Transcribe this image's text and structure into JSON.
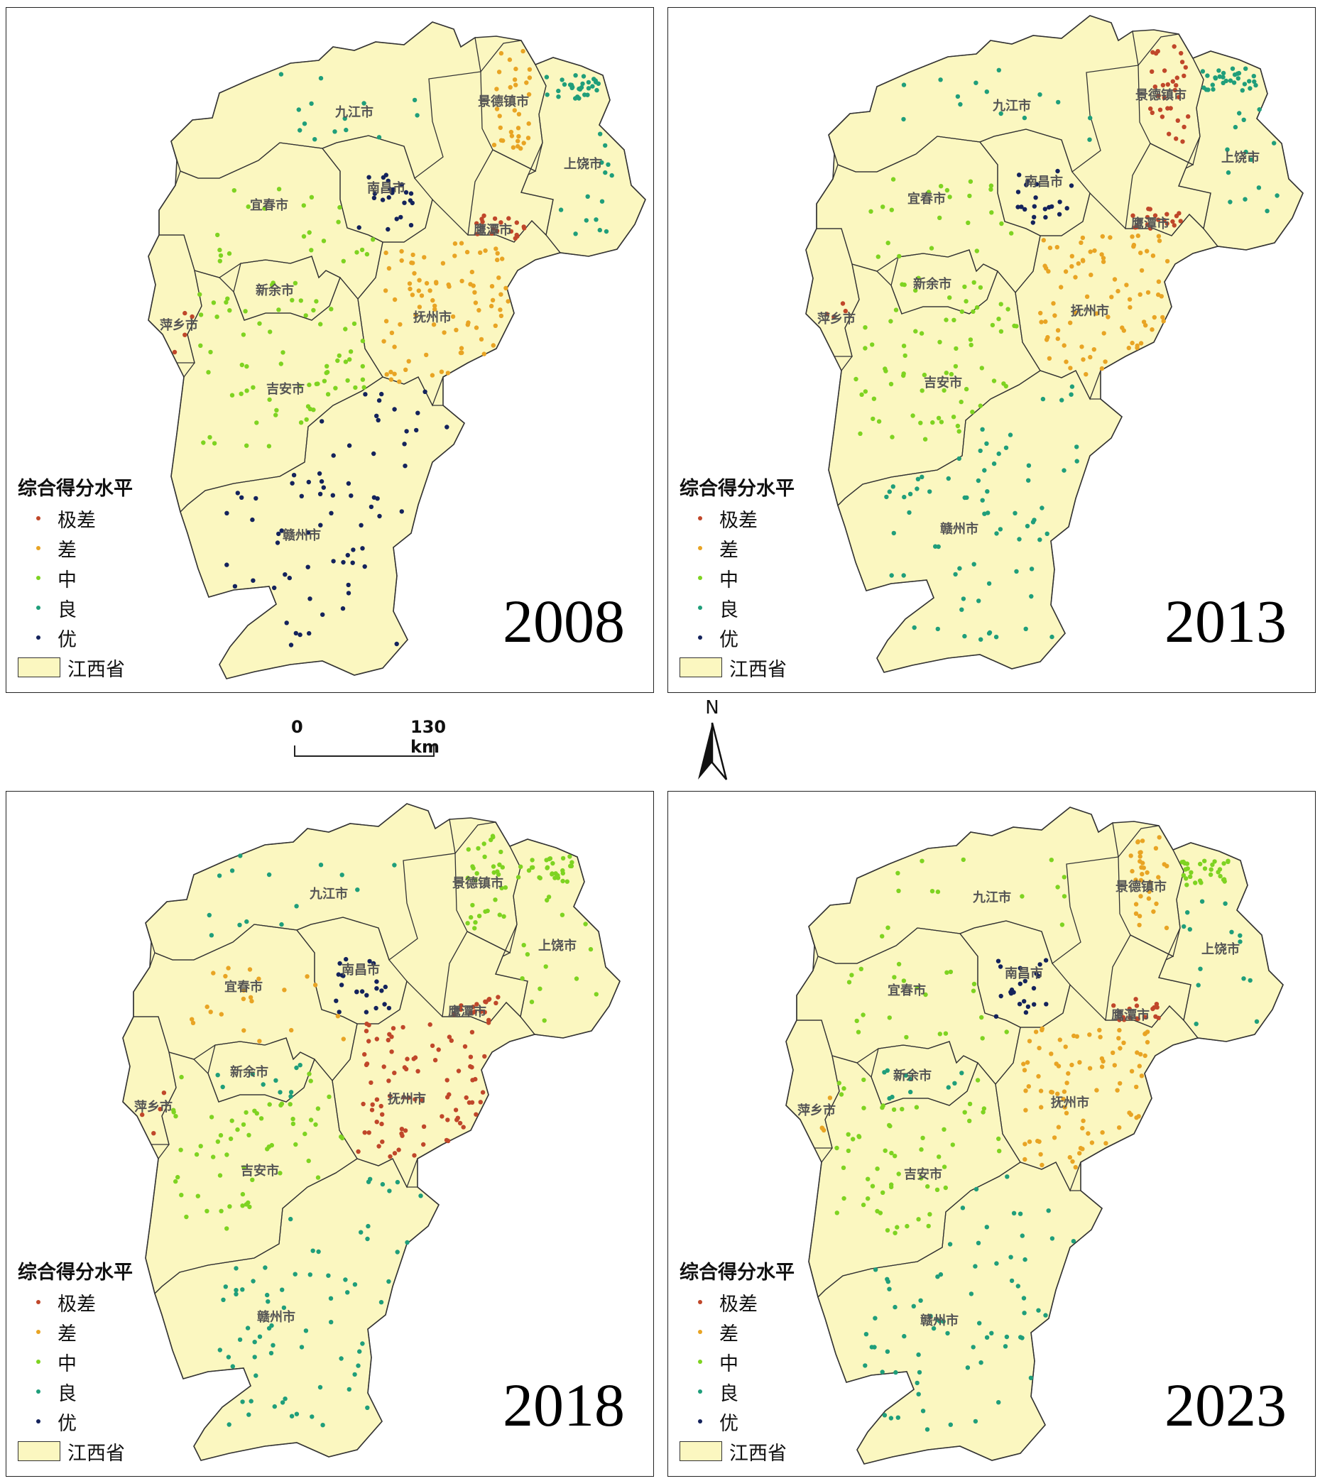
{
  "legend": {
    "title": "综合得分水平",
    "items": [
      {
        "label": "极差",
        "color": "#c0472a"
      },
      {
        "label": "差",
        "color": "#e8a424"
      },
      {
        "label": "中",
        "color": "#7ed321"
      },
      {
        "label": "良",
        "color": "#1f9e7a"
      },
      {
        "label": "优",
        "color": "#14235c"
      }
    ],
    "province_label": "江西省",
    "province_color": "#fbf7c0"
  },
  "cities": [
    "九江市",
    "景德镇市",
    "上饶市",
    "南昌市",
    "宜春市",
    "鹰潭市",
    "新余市",
    "抚州市",
    "萍乡市",
    "吉安市",
    "赣州市"
  ],
  "panels": [
    {
      "year": "2008",
      "city_levels": {
        "jiujiang": "良",
        "jingdezhen": "差",
        "shangrao_ne": "良",
        "shangrao": "良",
        "nanchang": "优",
        "yichun": "中",
        "yingtan": "极差",
        "xinyu": "中",
        "fuzhou": "差",
        "pingxiang": "极差",
        "jian": "中",
        "ganzhou": "优"
      }
    },
    {
      "year": "2013",
      "city_levels": {
        "jiujiang": "良",
        "jingdezhen": "极差",
        "shangrao_ne": "良",
        "shangrao": "良",
        "nanchang": "优",
        "yichun": "中",
        "yingtan": "极差",
        "xinyu": "中",
        "fuzhou": "差",
        "pingxiang": "极差",
        "jian": "中",
        "ganzhou": "良"
      }
    },
    {
      "year": "2018",
      "city_levels": {
        "jiujiang": "良",
        "jingdezhen": "中",
        "shangrao_ne": "中",
        "shangrao": "中",
        "nanchang": "优",
        "yichun": "差",
        "yingtan": "极差",
        "xinyu": "良",
        "fuzhou": "极差",
        "pingxiang": "极差",
        "jian": "中",
        "ganzhou": "良"
      }
    },
    {
      "year": "2023",
      "city_levels": {
        "jiujiang": "中",
        "jingdezhen": "差",
        "shangrao_ne": "中",
        "shangrao": "良",
        "nanchang": "优",
        "yichun": "中",
        "yingtan": "极差",
        "xinyu": "良",
        "fuzhou": "差",
        "pingxiang": "差",
        "jian": "中",
        "ganzhou": "良"
      }
    }
  ],
  "scale_bar": {
    "left_label": "0",
    "right_label": "130 km"
  },
  "north_arrow": {
    "label": "N"
  }
}
